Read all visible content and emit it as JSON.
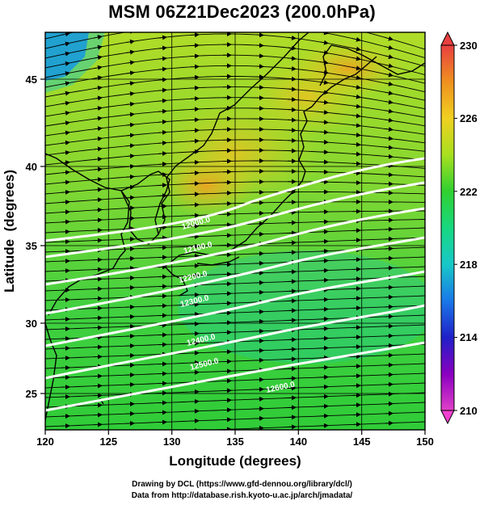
{
  "title": "MSM 06Z21Dec2023 (200.0hPa)",
  "map": {
    "xlabel": "Longitude (degrees)",
    "ylabel": "Latitude  (degrees)",
    "lon_range": [
      120,
      150
    ],
    "lat_range": [
      22.4,
      47.6
    ],
    "lon_ticks": [
      "120",
      "125",
      "130",
      "135",
      "140",
      "145",
      "150"
    ],
    "lat_ticks": [
      "25",
      "30",
      "35",
      "40",
      "45"
    ],
    "field": "temperature shading (K) with wind streamlines",
    "contour_color": "#ffffff",
    "contour_labels": [
      "12600.0",
      "12500.0",
      "12400.0",
      "12300.0",
      "12200.0",
      "12100.0",
      "12000.0"
    ]
  },
  "colorbar": {
    "ticks": [
      "230",
      "226",
      "222",
      "218",
      "214",
      "210"
    ],
    "range": [
      210,
      230
    ],
    "colors": [
      "#e040c8",
      "#8a00c0",
      "#2020c8",
      "#1a78e8",
      "#18c8c8",
      "#18d880",
      "#30d030",
      "#a8e020",
      "#f0d020",
      "#f09020",
      "#e84040"
    ]
  },
  "credits": {
    "line1": "Drawing by DCL (https://www.gfd-dennou.org/library/dcl/)",
    "line2": "Data from http://database.rish.kyoto-u.ac.jp/arch/jmadata/"
  }
}
